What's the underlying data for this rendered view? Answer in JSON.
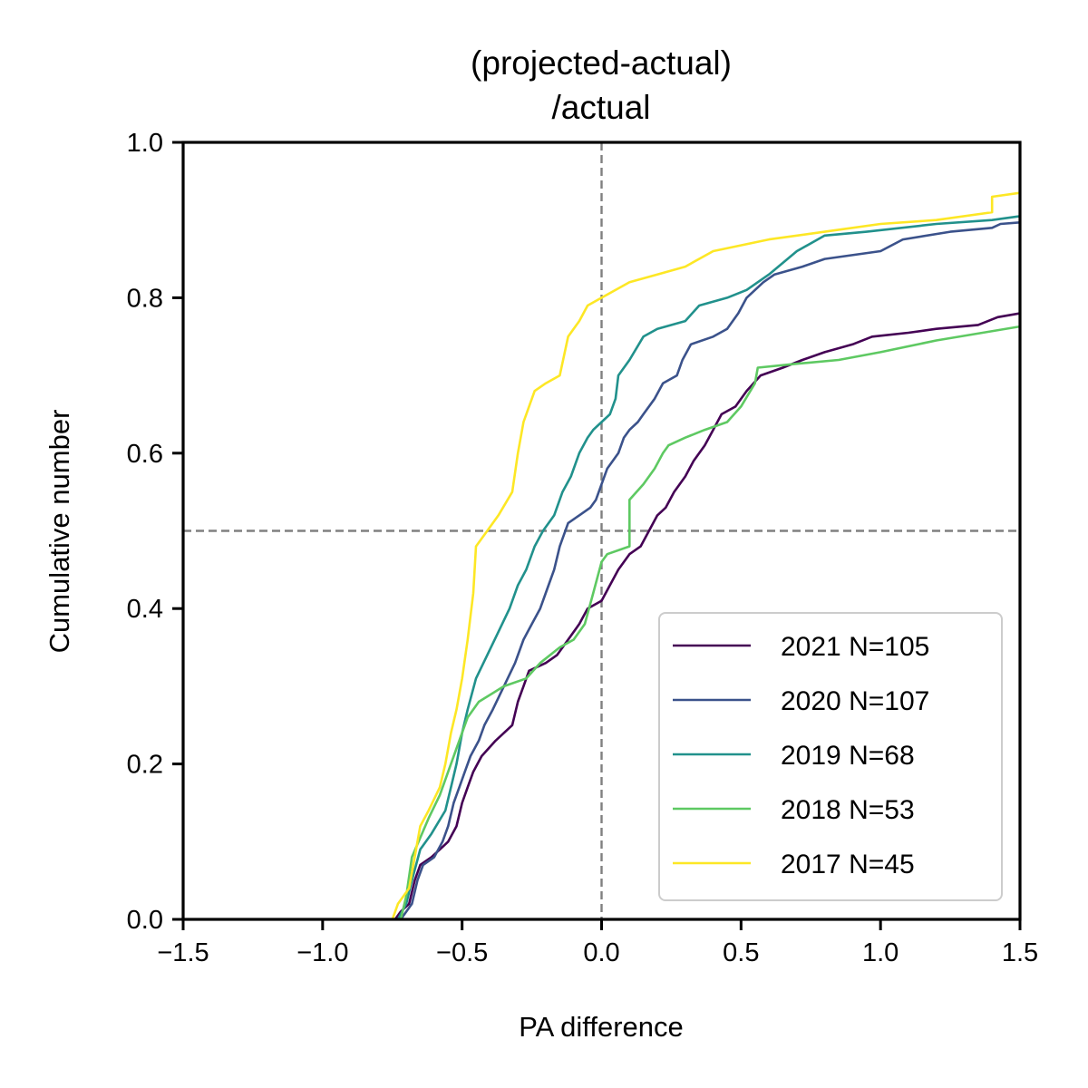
{
  "chart_data": {
    "type": "line",
    "title_lines": [
      "(projected-actual)",
      "/actual"
    ],
    "xlabel": "PA difference",
    "ylabel": "Cumulative number",
    "xlim": [
      -1.5,
      1.5
    ],
    "ylim": [
      0.0,
      1.0
    ],
    "xticks": [
      -1.5,
      -1.0,
      -0.5,
      0.0,
      0.5,
      1.0,
      1.5
    ],
    "xtick_labels": [
      "−1.5",
      "−1.0",
      "−0.5",
      "0.0",
      "0.5",
      "1.0",
      "1.5"
    ],
    "yticks": [
      0.0,
      0.2,
      0.4,
      0.6,
      0.8,
      1.0
    ],
    "ytick_labels": [
      "0.0",
      "0.2",
      "0.4",
      "0.6",
      "0.8",
      "1.0"
    ],
    "reference_lines": {
      "x": 0.0,
      "y": 0.5,
      "style": "dashed",
      "color": "#808080"
    },
    "grid": false,
    "legend_position": "lower-right",
    "series": [
      {
        "name": "2021 N=105",
        "color": "#440154",
        "points": [
          [
            -0.74,
            0.0
          ],
          [
            -0.72,
            0.01
          ],
          [
            -0.69,
            0.02
          ],
          [
            -0.67,
            0.05
          ],
          [
            -0.65,
            0.07
          ],
          [
            -0.61,
            0.08
          ],
          [
            -0.58,
            0.09
          ],
          [
            -0.55,
            0.1
          ],
          [
            -0.52,
            0.12
          ],
          [
            -0.5,
            0.15
          ],
          [
            -0.48,
            0.17
          ],
          [
            -0.46,
            0.19
          ],
          [
            -0.43,
            0.21
          ],
          [
            -0.38,
            0.23
          ],
          [
            -0.32,
            0.25
          ],
          [
            -0.3,
            0.28
          ],
          [
            -0.28,
            0.3
          ],
          [
            -0.26,
            0.32
          ],
          [
            -0.2,
            0.33
          ],
          [
            -0.16,
            0.34
          ],
          [
            -0.12,
            0.36
          ],
          [
            -0.08,
            0.38
          ],
          [
            -0.05,
            0.4
          ],
          [
            0.0,
            0.41
          ],
          [
            0.03,
            0.43
          ],
          [
            0.06,
            0.45
          ],
          [
            0.1,
            0.47
          ],
          [
            0.14,
            0.48
          ],
          [
            0.17,
            0.5
          ],
          [
            0.2,
            0.52
          ],
          [
            0.23,
            0.53
          ],
          [
            0.26,
            0.55
          ],
          [
            0.3,
            0.57
          ],
          [
            0.33,
            0.59
          ],
          [
            0.37,
            0.61
          ],
          [
            0.4,
            0.63
          ],
          [
            0.43,
            0.65
          ],
          [
            0.48,
            0.66
          ],
          [
            0.52,
            0.68
          ],
          [
            0.57,
            0.7
          ],
          [
            0.65,
            0.71
          ],
          [
            0.72,
            0.72
          ],
          [
            0.8,
            0.73
          ],
          [
            0.9,
            0.74
          ],
          [
            0.97,
            0.75
          ],
          [
            1.1,
            0.755
          ],
          [
            1.2,
            0.76
          ],
          [
            1.35,
            0.765
          ],
          [
            1.42,
            0.775
          ],
          [
            1.5,
            0.78
          ]
        ]
      },
      {
        "name": "2020 N=107",
        "color": "#3b528b",
        "points": [
          [
            -0.72,
            0.0
          ],
          [
            -0.68,
            0.02
          ],
          [
            -0.66,
            0.05
          ],
          [
            -0.64,
            0.07
          ],
          [
            -0.6,
            0.08
          ],
          [
            -0.57,
            0.1
          ],
          [
            -0.55,
            0.12
          ],
          [
            -0.53,
            0.15
          ],
          [
            -0.51,
            0.17
          ],
          [
            -0.49,
            0.19
          ],
          [
            -0.47,
            0.21
          ],
          [
            -0.44,
            0.23
          ],
          [
            -0.42,
            0.25
          ],
          [
            -0.39,
            0.27
          ],
          [
            -0.35,
            0.3
          ],
          [
            -0.31,
            0.33
          ],
          [
            -0.28,
            0.36
          ],
          [
            -0.25,
            0.38
          ],
          [
            -0.22,
            0.4
          ],
          [
            -0.19,
            0.43
          ],
          [
            -0.17,
            0.45
          ],
          [
            -0.15,
            0.48
          ],
          [
            -0.12,
            0.51
          ],
          [
            -0.08,
            0.52
          ],
          [
            -0.04,
            0.53
          ],
          [
            -0.02,
            0.54
          ],
          [
            0.0,
            0.56
          ],
          [
            0.02,
            0.58
          ],
          [
            0.06,
            0.6
          ],
          [
            0.08,
            0.62
          ],
          [
            0.1,
            0.63
          ],
          [
            0.13,
            0.64
          ],
          [
            0.15,
            0.65
          ],
          [
            0.19,
            0.67
          ],
          [
            0.22,
            0.69
          ],
          [
            0.27,
            0.7
          ],
          [
            0.29,
            0.72
          ],
          [
            0.32,
            0.74
          ],
          [
            0.4,
            0.75
          ],
          [
            0.45,
            0.76
          ],
          [
            0.49,
            0.78
          ],
          [
            0.52,
            0.8
          ],
          [
            0.58,
            0.82
          ],
          [
            0.62,
            0.83
          ],
          [
            0.72,
            0.84
          ],
          [
            0.8,
            0.85
          ],
          [
            1.0,
            0.86
          ],
          [
            1.08,
            0.875
          ],
          [
            1.25,
            0.885
          ],
          [
            1.4,
            0.89
          ],
          [
            1.43,
            0.895
          ],
          [
            1.5,
            0.897
          ]
        ]
      },
      {
        "name": "2019 N=68",
        "color": "#21918c",
        "points": [
          [
            -0.73,
            0.0
          ],
          [
            -0.7,
            0.02
          ],
          [
            -0.68,
            0.05
          ],
          [
            -0.65,
            0.09
          ],
          [
            -0.61,
            0.11
          ],
          [
            -0.56,
            0.14
          ],
          [
            -0.54,
            0.17
          ],
          [
            -0.52,
            0.2
          ],
          [
            -0.5,
            0.24
          ],
          [
            -0.48,
            0.27
          ],
          [
            -0.45,
            0.31
          ],
          [
            -0.41,
            0.34
          ],
          [
            -0.37,
            0.37
          ],
          [
            -0.33,
            0.4
          ],
          [
            -0.3,
            0.43
          ],
          [
            -0.27,
            0.45
          ],
          [
            -0.24,
            0.48
          ],
          [
            -0.21,
            0.5
          ],
          [
            -0.17,
            0.52
          ],
          [
            -0.14,
            0.55
          ],
          [
            -0.11,
            0.57
          ],
          [
            -0.08,
            0.6
          ],
          [
            -0.05,
            0.62
          ],
          [
            -0.03,
            0.63
          ],
          [
            0.0,
            0.64
          ],
          [
            0.03,
            0.65
          ],
          [
            0.05,
            0.67
          ],
          [
            0.06,
            0.7
          ],
          [
            0.1,
            0.72
          ],
          [
            0.15,
            0.75
          ],
          [
            0.2,
            0.76
          ],
          [
            0.3,
            0.77
          ],
          [
            0.35,
            0.79
          ],
          [
            0.45,
            0.8
          ],
          [
            0.52,
            0.81
          ],
          [
            0.6,
            0.83
          ],
          [
            0.7,
            0.86
          ],
          [
            0.8,
            0.88
          ],
          [
            0.95,
            0.885
          ],
          [
            1.2,
            0.895
          ],
          [
            1.4,
            0.9
          ],
          [
            1.5,
            0.905
          ]
        ]
      },
      {
        "name": "2018 N=53",
        "color": "#5ec962",
        "points": [
          [
            -0.72,
            0.0
          ],
          [
            -0.7,
            0.03
          ],
          [
            -0.68,
            0.08
          ],
          [
            -0.62,
            0.13
          ],
          [
            -0.58,
            0.16
          ],
          [
            -0.55,
            0.19
          ],
          [
            -0.52,
            0.22
          ],
          [
            -0.48,
            0.26
          ],
          [
            -0.44,
            0.28
          ],
          [
            -0.35,
            0.3
          ],
          [
            -0.27,
            0.31
          ],
          [
            -0.22,
            0.33
          ],
          [
            -0.15,
            0.35
          ],
          [
            -0.1,
            0.36
          ],
          [
            -0.06,
            0.38
          ],
          [
            -0.03,
            0.42
          ],
          [
            0.0,
            0.46
          ],
          [
            0.02,
            0.47
          ],
          [
            0.1,
            0.48
          ],
          [
            0.1,
            0.52
          ],
          [
            0.1,
            0.54
          ],
          [
            0.15,
            0.56
          ],
          [
            0.19,
            0.58
          ],
          [
            0.22,
            0.6
          ],
          [
            0.24,
            0.61
          ],
          [
            0.3,
            0.62
          ],
          [
            0.37,
            0.63
          ],
          [
            0.45,
            0.64
          ],
          [
            0.5,
            0.66
          ],
          [
            0.55,
            0.69
          ],
          [
            0.56,
            0.71
          ],
          [
            0.7,
            0.715
          ],
          [
            0.85,
            0.72
          ],
          [
            1.0,
            0.73
          ],
          [
            1.2,
            0.745
          ],
          [
            1.5,
            0.763
          ]
        ]
      },
      {
        "name": "2017 N=45",
        "color": "#fde725",
        "points": [
          [
            -0.75,
            0.0
          ],
          [
            -0.73,
            0.02
          ],
          [
            -0.69,
            0.04
          ],
          [
            -0.67,
            0.08
          ],
          [
            -0.65,
            0.12
          ],
          [
            -0.62,
            0.14
          ],
          [
            -0.58,
            0.17
          ],
          [
            -0.56,
            0.2
          ],
          [
            -0.54,
            0.24
          ],
          [
            -0.52,
            0.27
          ],
          [
            -0.5,
            0.31
          ],
          [
            -0.48,
            0.36
          ],
          [
            -0.46,
            0.42
          ],
          [
            -0.45,
            0.48
          ],
          [
            -0.41,
            0.5
          ],
          [
            -0.37,
            0.52
          ],
          [
            -0.32,
            0.55
          ],
          [
            -0.3,
            0.6
          ],
          [
            -0.28,
            0.64
          ],
          [
            -0.26,
            0.66
          ],
          [
            -0.24,
            0.68
          ],
          [
            -0.2,
            0.69
          ],
          [
            -0.15,
            0.7
          ],
          [
            -0.12,
            0.75
          ],
          [
            -0.08,
            0.77
          ],
          [
            -0.05,
            0.79
          ],
          [
            0.0,
            0.8
          ],
          [
            0.1,
            0.82
          ],
          [
            0.2,
            0.83
          ],
          [
            0.3,
            0.84
          ],
          [
            0.4,
            0.86
          ],
          [
            0.6,
            0.875
          ],
          [
            0.8,
            0.885
          ],
          [
            1.0,
            0.895
          ],
          [
            1.2,
            0.9
          ],
          [
            1.4,
            0.91
          ],
          [
            1.4,
            0.93
          ],
          [
            1.5,
            0.935
          ]
        ]
      }
    ]
  }
}
